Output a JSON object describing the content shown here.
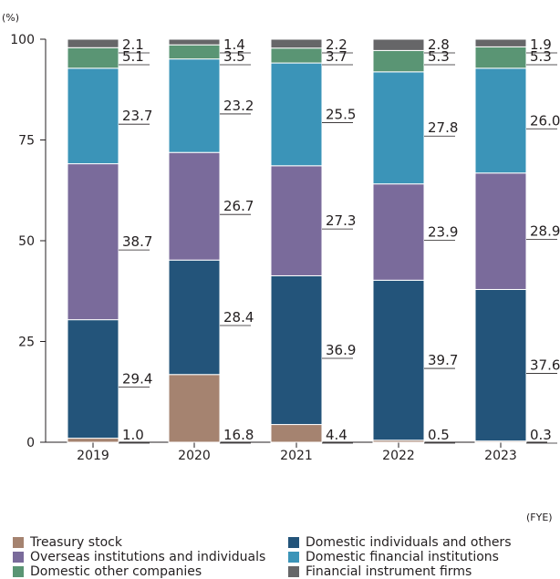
{
  "chart_data": {
    "type": "bar",
    "stacked": true,
    "y_unit_label": "(%)",
    "x_unit_label": "(FYE)",
    "ylim": [
      0,
      100
    ],
    "yticks": [
      0,
      25,
      50,
      75,
      100
    ],
    "categories": [
      "2019",
      "2020",
      "2021",
      "2022",
      "2023"
    ],
    "series": [
      {
        "name": "Treasury stock",
        "color": "#a58370",
        "values": [
          1.0,
          16.8,
          4.4,
          0.5,
          0.3
        ]
      },
      {
        "name": "Domestic individuals and others",
        "color": "#23547a",
        "values": [
          29.4,
          28.4,
          36.9,
          39.7,
          37.6
        ]
      },
      {
        "name": "Overseas institutions and individuals",
        "color": "#7a6b9b",
        "values": [
          38.7,
          26.7,
          27.3,
          23.9,
          28.9
        ]
      },
      {
        "name": "Domestic financial institutions",
        "color": "#3b94b8",
        "values": [
          23.7,
          23.2,
          25.5,
          27.8,
          26.0
        ]
      },
      {
        "name": "Domestic other companies",
        "color": "#5a9574",
        "values": [
          5.1,
          3.5,
          3.7,
          5.3,
          5.3
        ]
      },
      {
        "name": "Financial instrument firms",
        "color": "#666668",
        "values": [
          2.1,
          1.4,
          2.2,
          2.8,
          1.9
        ]
      }
    ],
    "legend_placement": "bottom",
    "grid": false
  }
}
